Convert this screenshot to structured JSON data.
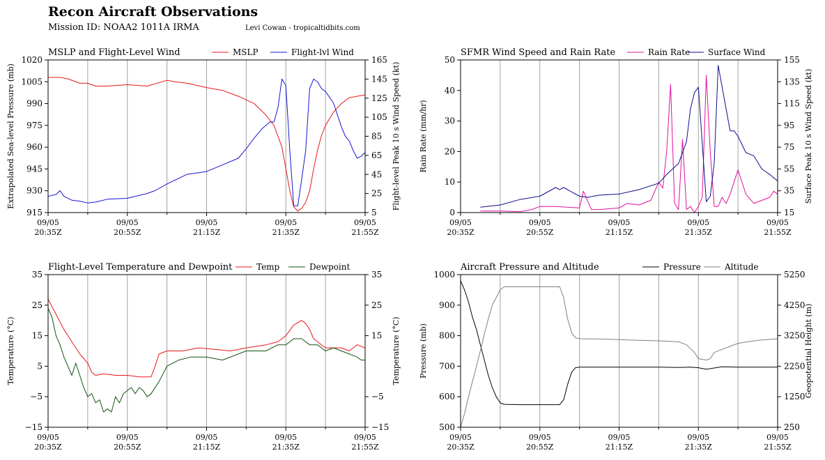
{
  "header": {
    "title": "Recon Aircraft Observations",
    "subtitle": "Mission ID: NOAA2 1011A IRMA",
    "credit": "Levi Cowan - tropicaltidbits.com"
  },
  "chart_data": [
    {
      "type": "line",
      "title": "MSLP and Flight-Level Wind",
      "x_ticks": [
        "09/05\n20:35Z",
        "09/05\n20:55Z",
        "09/05\n21:15Z",
        "09/05\n21:35Z",
        "09/05\n21:55Z"
      ],
      "xlim": [
        0,
        80
      ],
      "ylabel_left": "Extrapolated Sea-level Pressure (mb)",
      "ylabel_right": "Flight-level Peak 10 s Wind Speed (kt)",
      "ylim_left": [
        915,
        1020
      ],
      "ylim_right": [
        5,
        165
      ],
      "yticks_left": [
        915,
        930,
        945,
        960,
        975,
        990,
        1005,
        1020
      ],
      "yticks_right": [
        5,
        25,
        45,
        65,
        85,
        105,
        125,
        145,
        165
      ],
      "grid": "vertical",
      "legend_position": "top-right",
      "series": [
        {
          "name": "MSLP",
          "axis": "left",
          "color": "#e8161b",
          "x": [
            0,
            3,
            5,
            8,
            10,
            12,
            15,
            20,
            25,
            30,
            32,
            35,
            40,
            44,
            48,
            52,
            55,
            57,
            59,
            60,
            61,
            62,
            63,
            64,
            65,
            66,
            67,
            68,
            69,
            70,
            72,
            74,
            76,
            78,
            80
          ],
          "y": [
            1008,
            1008,
            1007,
            1004,
            1004,
            1002,
            1002,
            1003,
            1002,
            1006,
            1005,
            1004,
            1001,
            999,
            995,
            990,
            982,
            975,
            960,
            945,
            930,
            919,
            916,
            918,
            922,
            930,
            945,
            958,
            968,
            975,
            984,
            990,
            994,
            995,
            996
          ]
        },
        {
          "name": "Flight-lvl Wind",
          "axis": "right",
          "color": "#1515d6",
          "x": [
            0,
            2,
            3,
            4,
            6,
            8,
            10,
            12,
            15,
            20,
            25,
            27,
            30,
            35,
            40,
            44,
            48,
            50,
            52,
            54,
            56,
            57,
            58,
            59,
            60,
            61,
            62,
            63,
            64,
            65,
            66,
            67,
            68,
            69,
            70,
            72,
            74,
            75,
            76,
            77,
            78,
            79,
            80
          ],
          "y": [
            22,
            24,
            28,
            22,
            18,
            17,
            15,
            16,
            19,
            20,
            25,
            28,
            35,
            45,
            48,
            55,
            62,
            72,
            83,
            93,
            100,
            100,
            115,
            145,
            138,
            70,
            12,
            12,
            40,
            70,
            135,
            145,
            142,
            135,
            132,
            120,
            95,
            85,
            80,
            70,
            62,
            64,
            68
          ]
        }
      ]
    },
    {
      "type": "line",
      "title": "SFMR Wind Speed and Rain Rate",
      "x_ticks": [
        "09/05\n20:35Z",
        "09/05\n20:55Z",
        "09/05\n21:15Z",
        "09/05\n21:35Z",
        "09/05\n21:55Z"
      ],
      "xlim": [
        0,
        80
      ],
      "ylabel_left": "Rain Rate (mm/hr)",
      "ylabel_right": "Surface Peak 10 s Wind Speed (kt)",
      "ylim_left": [
        0,
        50
      ],
      "ylim_right": [
        15,
        155
      ],
      "yticks_left": [
        0,
        10,
        20,
        30,
        40,
        50
      ],
      "yticks_right": [
        15,
        35,
        55,
        75,
        95,
        115,
        135,
        155
      ],
      "grid": "vertical",
      "legend_position": "top-right",
      "series": [
        {
          "name": "Rain Rate",
          "axis": "left",
          "color": "#e0119c",
          "x": [
            5,
            10,
            15,
            18,
            20,
            24,
            30,
            31,
            33,
            35,
            40,
            42,
            45,
            48,
            50,
            51,
            52,
            53,
            54,
            55,
            56,
            57,
            58,
            59,
            60,
            61,
            62,
            63,
            64,
            65,
            66,
            67,
            68,
            70,
            72,
            74,
            76,
            78,
            79,
            80
          ],
          "y": [
            0.5,
            0.5,
            0.3,
            1,
            2,
            2,
            1.5,
            7,
            1,
            1,
            1.5,
            3,
            2.5,
            4,
            10,
            8,
            20,
            42,
            3,
            1,
            24,
            1,
            2,
            0,
            2,
            5,
            45,
            20,
            2,
            2,
            5,
            3,
            6,
            14,
            6,
            3,
            4,
            5,
            7,
            6
          ]
        },
        {
          "name": "Surface Wind",
          "axis": "right",
          "color": "#0d0d8c",
          "x": [
            5,
            10,
            15,
            20,
            24,
            25,
            26,
            28,
            30,
            32,
            35,
            40,
            45,
            50,
            52,
            55,
            57,
            58,
            59,
            60,
            61,
            62,
            63,
            64,
            65,
            66,
            67,
            68,
            69,
            70,
            72,
            74,
            76,
            78,
            80
          ],
          "y": [
            20,
            22,
            27,
            30,
            38,
            36,
            38,
            34,
            30,
            29,
            31,
            32,
            36,
            42,
            50,
            60,
            80,
            110,
            125,
            130,
            78,
            25,
            30,
            60,
            150,
            130,
            110,
            90,
            90,
            85,
            70,
            67,
            55,
            50,
            44
          ]
        }
      ]
    },
    {
      "type": "line",
      "title": "Flight-Level Temperature and Dewpoint",
      "x_ticks": [
        "09/05\n20:35Z",
        "09/05\n20:55Z",
        "09/05\n21:15Z",
        "09/05\n21:35Z",
        "09/05\n21:55Z"
      ],
      "xlim": [
        0,
        80
      ],
      "ylabel_left": "Temperature (°C)",
      "ylabel_right": "Temperature (°C)",
      "ylim_left": [
        -15,
        35
      ],
      "ylim_right": [
        -15,
        35
      ],
      "yticks_left": [
        -15,
        -5,
        5,
        15,
        25,
        35
      ],
      "yticks_right": [
        -15,
        -5,
        15,
        25,
        35
      ],
      "grid": "vertical",
      "legend_position": "top-right",
      "series": [
        {
          "name": "Temp",
          "axis": "left",
          "color": "#e8161b",
          "x": [
            0,
            2,
            4,
            6,
            8,
            10,
            11,
            12,
            14,
            17,
            20,
            23,
            26,
            27,
            28,
            30,
            34,
            38,
            42,
            46,
            50,
            55,
            58,
            60,
            62,
            64,
            65,
            66,
            67,
            68,
            70,
            72,
            74,
            76,
            78,
            80
          ],
          "y": [
            27,
            22,
            17,
            13,
            9,
            6,
            3,
            2,
            2.5,
            2,
            2,
            1.5,
            1.5,
            5,
            9,
            10,
            10,
            11,
            10.5,
            10,
            11,
            12,
            13,
            15,
            18.5,
            20,
            19,
            17,
            14,
            13,
            11,
            11,
            11,
            10,
            12,
            11
          ]
        },
        {
          "name": "Dewpoint",
          "axis": "left",
          "color": "#11520e",
          "x": [
            0,
            1,
            2,
            3,
            4,
            5,
            6,
            7,
            8,
            9,
            10,
            11,
            12,
            13,
            14,
            15,
            16,
            17,
            18,
            19,
            20,
            21,
            22,
            23,
            24,
            25,
            26,
            28,
            30,
            33,
            36,
            40,
            44,
            48,
            50,
            55,
            58,
            60,
            62,
            64,
            66,
            68,
            70,
            72,
            74,
            76,
            78,
            79,
            80
          ],
          "y": [
            24,
            21,
            15,
            12,
            8,
            5,
            2,
            6,
            2,
            -2,
            -5,
            -4,
            -7,
            -6,
            -10,
            -9,
            -10,
            -5,
            -7,
            -4,
            -3,
            -2,
            -4,
            -2,
            -3,
            -5,
            -4,
            0,
            5,
            7,
            8,
            8,
            7,
            9,
            10,
            10,
            12,
            12,
            14,
            14,
            12,
            12,
            10,
            11,
            10,
            9,
            8,
            7,
            7
          ]
        }
      ]
    },
    {
      "type": "line",
      "title": "Aircraft Pressure and Altitude",
      "x_ticks": [
        "09/05\n20:35Z",
        "09/05\n20:55Z",
        "09/05\n21:15Z",
        "09/05\n21:35Z",
        "09/05\n21:55Z"
      ],
      "xlim": [
        0,
        80
      ],
      "ylabel_left": "Pressure (mb)",
      "ylabel_right": "Geopotential Height (m)",
      "ylim_left": [
        500,
        1000
      ],
      "ylim_right": [
        250,
        5250
      ],
      "yticks_left": [
        500,
        600,
        700,
        800,
        900,
        1000
      ],
      "yticks_right": [
        250,
        1250,
        2250,
        3250,
        4250,
        5250
      ],
      "grid": "vertical",
      "legend_position": "top-right",
      "series": [
        {
          "name": "Pressure",
          "axis": "left",
          "color": "#000000",
          "x": [
            0,
            1,
            2,
            3,
            4,
            5,
            6,
            7,
            8,
            9,
            10,
            11,
            15,
            20,
            25,
            26,
            27,
            28,
            29,
            30,
            35,
            40,
            45,
            50,
            55,
            58,
            60,
            62,
            64,
            66,
            70,
            75,
            80
          ],
          "y": [
            980,
            950,
            910,
            860,
            820,
            770,
            720,
            670,
            630,
            600,
            580,
            575,
            574,
            574,
            574,
            590,
            640,
            680,
            695,
            697,
            697,
            697,
            697,
            697,
            696,
            697,
            695,
            690,
            694,
            698,
            697,
            697,
            697
          ]
        },
        {
          "name": "Altitude",
          "axis": "right",
          "color": "#808080",
          "x": [
            0,
            1,
            2,
            3,
            4,
            5,
            6,
            7,
            8,
            9,
            10,
            11,
            15,
            20,
            25,
            26,
            27,
            28,
            29,
            30,
            35,
            40,
            45,
            50,
            55,
            57,
            59,
            60,
            62,
            63,
            64,
            66,
            68,
            70,
            75,
            80
          ],
          "y": [
            250,
            700,
            1250,
            1750,
            2250,
            2750,
            3300,
            3800,
            4250,
            4500,
            4750,
            4850,
            4850,
            4850,
            4850,
            4500,
            3800,
            3350,
            3180,
            3150,
            3140,
            3120,
            3100,
            3080,
            3050,
            2950,
            2700,
            2500,
            2450,
            2500,
            2700,
            2800,
            2900,
            3000,
            3100,
            3150
          ]
        }
      ]
    }
  ]
}
